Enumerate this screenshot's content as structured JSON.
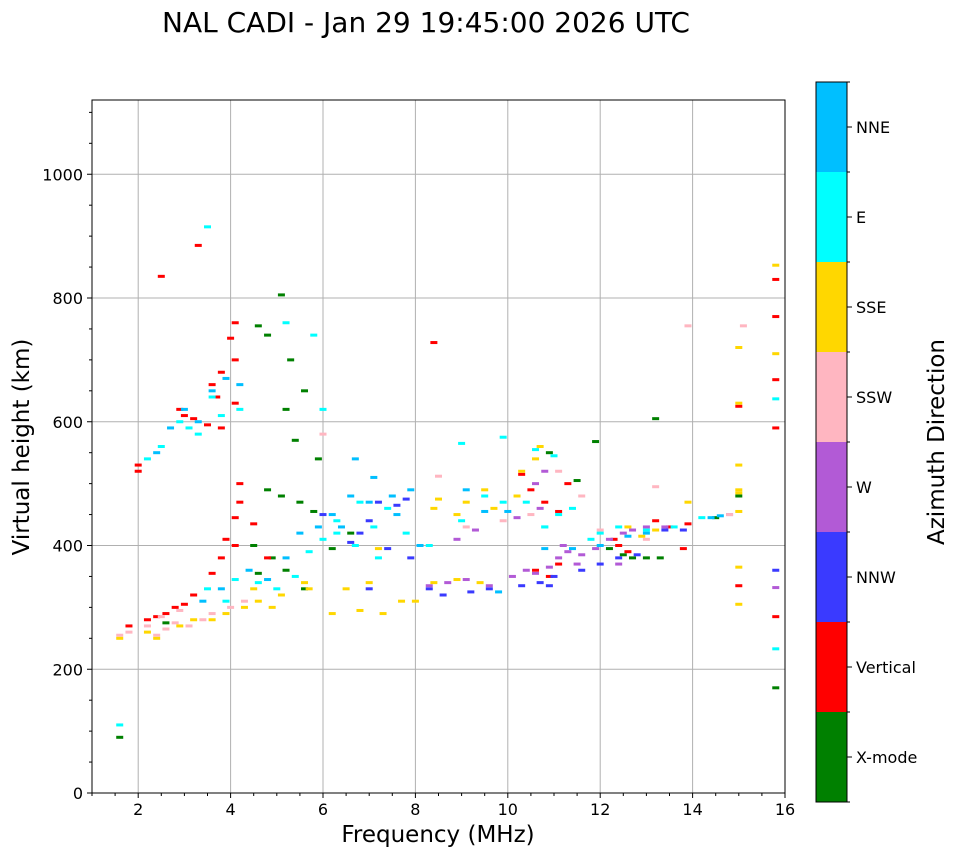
{
  "chart_data": {
    "type": "scatter",
    "title": "NAL CADI - Jan 29 19:45:00 2026 UTC",
    "xlabel": "Frequency (MHz)",
    "ylabel": "Virtual height (km)",
    "xlim": [
      1,
      16
    ],
    "ylim": [
      0,
      1120
    ],
    "xticks": [
      2,
      4,
      6,
      8,
      10,
      12,
      14,
      16
    ],
    "xtick_labels": [
      "2",
      "4",
      "6",
      "8",
      "10",
      "12",
      "14",
      "16"
    ],
    "yticks": [
      0,
      200,
      400,
      600,
      800,
      1000
    ],
    "ytick_labels": [
      "0",
      "200",
      "400",
      "600",
      "800",
      "1000"
    ],
    "grid": true,
    "colorbar": {
      "label": "Azimuth Direction",
      "categories": [
        {
          "name": "X-mode",
          "color": "#008000"
        },
        {
          "name": "Vertical",
          "color": "#ff0000"
        },
        {
          "name": "NNW",
          "color": "#3a3aff"
        },
        {
          "name": "W",
          "color": "#b25ad6"
        },
        {
          "name": "SSW",
          "color": "#ffb6c1"
        },
        {
          "name": "SSE",
          "color": "#ffd700"
        },
        {
          "name": "E",
          "color": "#00ffff"
        },
        {
          "name": "NNE",
          "color": "#00bfff"
        }
      ]
    },
    "series": [
      {
        "name": "X-mode",
        "points": [
          [
            1.6,
            90
          ],
          [
            2.6,
            275
          ],
          [
            4.6,
            755
          ],
          [
            4.8,
            740
          ],
          [
            5.1,
            805
          ],
          [
            5.3,
            700
          ],
          [
            5.6,
            650
          ],
          [
            5.2,
            620
          ],
          [
            5.4,
            570
          ],
          [
            5.9,
            540
          ],
          [
            4.8,
            490
          ],
          [
            5.1,
            480
          ],
          [
            5.5,
            470
          ],
          [
            5.8,
            455
          ],
          [
            4.5,
            400
          ],
          [
            4.9,
            380
          ],
          [
            5.2,
            360
          ],
          [
            4.6,
            355
          ],
          [
            5.6,
            330
          ],
          [
            6.2,
            395
          ],
          [
            6.6,
            420
          ],
          [
            12.2,
            395
          ],
          [
            12.5,
            385
          ],
          [
            12.7,
            380
          ],
          [
            13.0,
            380
          ],
          [
            13.3,
            380
          ],
          [
            14.5,
            445
          ],
          [
            15.0,
            480
          ],
          [
            15.8,
            170
          ],
          [
            11.9,
            568
          ],
          [
            11.5,
            505
          ],
          [
            10.9,
            550
          ],
          [
            13.2,
            605
          ]
        ]
      },
      {
        "name": "Vertical",
        "points": [
          [
            2.0,
            520
          ],
          [
            2.0,
            530
          ],
          [
            2.5,
            835
          ],
          [
            3.3,
            885
          ],
          [
            3.6,
            660
          ],
          [
            3.7,
            640
          ],
          [
            3.8,
            680
          ],
          [
            4.0,
            735
          ],
          [
            4.1,
            760
          ],
          [
            4.1,
            700
          ],
          [
            4.1,
            630
          ],
          [
            2.9,
            620
          ],
          [
            3.0,
            610
          ],
          [
            3.2,
            605
          ],
          [
            3.5,
            595
          ],
          [
            3.8,
            590
          ],
          [
            4.1,
            445
          ],
          [
            3.9,
            410
          ],
          [
            4.1,
            400
          ],
          [
            4.2,
            500
          ],
          [
            4.2,
            470
          ],
          [
            3.8,
            380
          ],
          [
            3.6,
            355
          ],
          [
            3.2,
            320
          ],
          [
            3.0,
            305
          ],
          [
            2.8,
            300
          ],
          [
            2.6,
            290
          ],
          [
            2.4,
            285
          ],
          [
            2.2,
            280
          ],
          [
            1.8,
            270
          ],
          [
            4.5,
            435
          ],
          [
            4.8,
            380
          ],
          [
            8.4,
            728
          ],
          [
            10.3,
            515
          ],
          [
            10.5,
            490
          ],
          [
            10.8,
            470
          ],
          [
            11.1,
            455
          ],
          [
            11.3,
            500
          ],
          [
            12.3,
            410
          ],
          [
            12.4,
            400
          ],
          [
            12.6,
            390
          ],
          [
            13.2,
            440
          ],
          [
            13.5,
            430
          ],
          [
            13.9,
            435
          ],
          [
            13.8,
            395
          ],
          [
            15.0,
            625
          ],
          [
            15.0,
            335
          ],
          [
            15.8,
            590
          ],
          [
            15.8,
            668
          ],
          [
            15.8,
            770
          ],
          [
            15.8,
            830
          ],
          [
            15.8,
            285
          ],
          [
            10.6,
            360
          ],
          [
            10.9,
            350
          ],
          [
            11.1,
            370
          ]
        ]
      },
      {
        "name": "NNW",
        "points": [
          [
            6.6,
            405
          ],
          [
            7.0,
            440
          ],
          [
            7.2,
            470
          ],
          [
            6.8,
            420
          ],
          [
            7.4,
            395
          ],
          [
            7.8,
            475
          ],
          [
            7.6,
            465
          ],
          [
            7.9,
            380
          ],
          [
            8.3,
            330
          ],
          [
            8.6,
            320
          ],
          [
            9.2,
            325
          ],
          [
            9.6,
            330
          ],
          [
            10.3,
            335
          ],
          [
            10.7,
            340
          ],
          [
            11.0,
            350
          ],
          [
            11.6,
            360
          ],
          [
            12.0,
            370
          ],
          [
            12.4,
            380
          ],
          [
            12.8,
            385
          ],
          [
            13.4,
            425
          ],
          [
            13.8,
            425
          ],
          [
            10.9,
            335
          ],
          [
            6.0,
            450
          ],
          [
            7.0,
            330
          ],
          [
            15.8,
            360
          ]
        ]
      },
      {
        "name": "W",
        "points": [
          [
            8.3,
            335
          ],
          [
            8.7,
            340
          ],
          [
            9.1,
            345
          ],
          [
            9.6,
            335
          ],
          [
            10.1,
            350
          ],
          [
            10.4,
            360
          ],
          [
            10.6,
            355
          ],
          [
            10.9,
            365
          ],
          [
            11.1,
            380
          ],
          [
            11.3,
            390
          ],
          [
            11.5,
            370
          ],
          [
            11.6,
            385
          ],
          [
            11.9,
            395
          ],
          [
            12.2,
            410
          ],
          [
            12.5,
            420
          ],
          [
            12.7,
            425
          ],
          [
            13.0,
            430
          ],
          [
            13.4,
            430
          ],
          [
            10.7,
            460
          ],
          [
            10.2,
            445
          ],
          [
            9.3,
            425
          ],
          [
            8.9,
            410
          ],
          [
            10.6,
            500
          ],
          [
            10.8,
            520
          ],
          [
            15.8,
            332
          ],
          [
            14.8,
            450
          ],
          [
            12.4,
            370
          ],
          [
            11.2,
            400
          ]
        ]
      },
      {
        "name": "SSW",
        "points": [
          [
            1.6,
            255
          ],
          [
            1.8,
            260
          ],
          [
            2.2,
            270
          ],
          [
            2.4,
            255
          ],
          [
            2.6,
            265
          ],
          [
            2.8,
            275
          ],
          [
            3.1,
            270
          ],
          [
            3.4,
            280
          ],
          [
            3.6,
            290
          ],
          [
            4.0,
            300
          ],
          [
            4.3,
            310
          ],
          [
            2.5,
            285
          ],
          [
            2.9,
            295
          ],
          [
            8.5,
            512
          ],
          [
            9.1,
            430
          ],
          [
            9.9,
            440
          ],
          [
            10.5,
            450
          ],
          [
            11.1,
            520
          ],
          [
            11.6,
            480
          ],
          [
            12.0,
            425
          ],
          [
            13.0,
            410
          ],
          [
            13.2,
            495
          ],
          [
            14.8,
            450
          ],
          [
            15.1,
            755
          ],
          [
            13.9,
            755
          ],
          [
            6.0,
            580
          ]
        ]
      },
      {
        "name": "SSE",
        "points": [
          [
            1.6,
            250
          ],
          [
            2.2,
            260
          ],
          [
            2.4,
            250
          ],
          [
            2.9,
            270
          ],
          [
            3.2,
            280
          ],
          [
            3.6,
            280
          ],
          [
            3.9,
            290
          ],
          [
            4.3,
            300
          ],
          [
            4.6,
            310
          ],
          [
            4.9,
            300
          ],
          [
            5.1,
            320
          ],
          [
            5.6,
            340
          ],
          [
            6.2,
            290
          ],
          [
            6.5,
            330
          ],
          [
            6.8,
            295
          ],
          [
            7.0,
            340
          ],
          [
            7.3,
            290
          ],
          [
            7.7,
            310
          ],
          [
            8.0,
            310
          ],
          [
            8.4,
            340
          ],
          [
            8.9,
            345
          ],
          [
            9.4,
            340
          ],
          [
            8.4,
            460
          ],
          [
            8.5,
            475
          ],
          [
            8.9,
            450
          ],
          [
            9.1,
            470
          ],
          [
            9.5,
            490
          ],
          [
            9.7,
            460
          ],
          [
            10.2,
            480
          ],
          [
            10.3,
            520
          ],
          [
            10.6,
            540
          ],
          [
            10.7,
            560
          ],
          [
            12.6,
            430
          ],
          [
            12.9,
            415
          ],
          [
            13.2,
            425
          ],
          [
            15.0,
            720
          ],
          [
            15.0,
            630
          ],
          [
            15.0,
            530
          ],
          [
            15.0,
            490
          ],
          [
            15.0,
            485
          ],
          [
            15.0,
            455
          ],
          [
            15.0,
            365
          ],
          [
            15.0,
            305
          ],
          [
            15.8,
            853
          ],
          [
            15.8,
            710
          ],
          [
            4.5,
            330
          ],
          [
            5.7,
            330
          ],
          [
            7.2,
            395
          ],
          [
            13.9,
            470
          ]
        ]
      },
      {
        "name": "E",
        "points": [
          [
            1.6,
            110
          ],
          [
            2.9,
            600
          ],
          [
            3.1,
            590
          ],
          [
            3.3,
            580
          ],
          [
            3.6,
            640
          ],
          [
            3.8,
            610
          ],
          [
            4.2,
            620
          ],
          [
            2.2,
            540
          ],
          [
            2.5,
            560
          ],
          [
            3.5,
            330
          ],
          [
            3.9,
            310
          ],
          [
            4.1,
            345
          ],
          [
            4.6,
            340
          ],
          [
            5.0,
            330
          ],
          [
            5.4,
            350
          ],
          [
            5.7,
            390
          ],
          [
            6.0,
            410
          ],
          [
            6.3,
            420
          ],
          [
            6.7,
            400
          ],
          [
            7.1,
            430
          ],
          [
            7.4,
            460
          ],
          [
            7.8,
            420
          ],
          [
            6.3,
            440
          ],
          [
            6.8,
            470
          ],
          [
            7.2,
            380
          ],
          [
            8.3,
            400
          ],
          [
            9.0,
            440
          ],
          [
            9.5,
            480
          ],
          [
            9.9,
            470
          ],
          [
            10.4,
            470
          ],
          [
            10.8,
            430
          ],
          [
            11.1,
            450
          ],
          [
            11.4,
            460
          ],
          [
            11.8,
            410
          ],
          [
            12.0,
            420
          ],
          [
            12.4,
            430
          ],
          [
            13.0,
            425
          ],
          [
            13.6,
            430
          ],
          [
            14.2,
            445
          ],
          [
            10.8,
            430
          ],
          [
            11.0,
            545
          ],
          [
            10.6,
            555
          ],
          [
            15.8,
            637
          ],
          [
            15.8,
            233
          ],
          [
            9.0,
            565
          ],
          [
            9.9,
            575
          ],
          [
            5.2,
            760
          ],
          [
            5.8,
            740
          ],
          [
            6.0,
            620
          ],
          [
            3.5,
            915
          ]
        ]
      },
      {
        "name": "NNE",
        "points": [
          [
            2.7,
            590
          ],
          [
            3.0,
            620
          ],
          [
            3.3,
            600
          ],
          [
            3.6,
            650
          ],
          [
            3.9,
            670
          ],
          [
            4.2,
            660
          ],
          [
            2.4,
            550
          ],
          [
            3.4,
            310
          ],
          [
            3.8,
            330
          ],
          [
            4.4,
            360
          ],
          [
            4.8,
            345
          ],
          [
            5.2,
            380
          ],
          [
            5.5,
            420
          ],
          [
            5.9,
            430
          ],
          [
            6.2,
            450
          ],
          [
            6.6,
            480
          ],
          [
            7.0,
            470
          ],
          [
            7.6,
            450
          ],
          [
            8.1,
            400
          ],
          [
            6.7,
            540
          ],
          [
            7.1,
            510
          ],
          [
            7.5,
            480
          ],
          [
            7.9,
            490
          ],
          [
            6.4,
            430
          ],
          [
            9.1,
            490
          ],
          [
            9.5,
            455
          ],
          [
            10.0,
            455
          ],
          [
            9.8,
            325
          ],
          [
            10.8,
            395
          ],
          [
            11.4,
            395
          ],
          [
            12.0,
            400
          ],
          [
            12.6,
            415
          ],
          [
            13.0,
            420
          ],
          [
            14.4,
            445
          ],
          [
            14.6,
            448
          ]
        ]
      }
    ]
  }
}
